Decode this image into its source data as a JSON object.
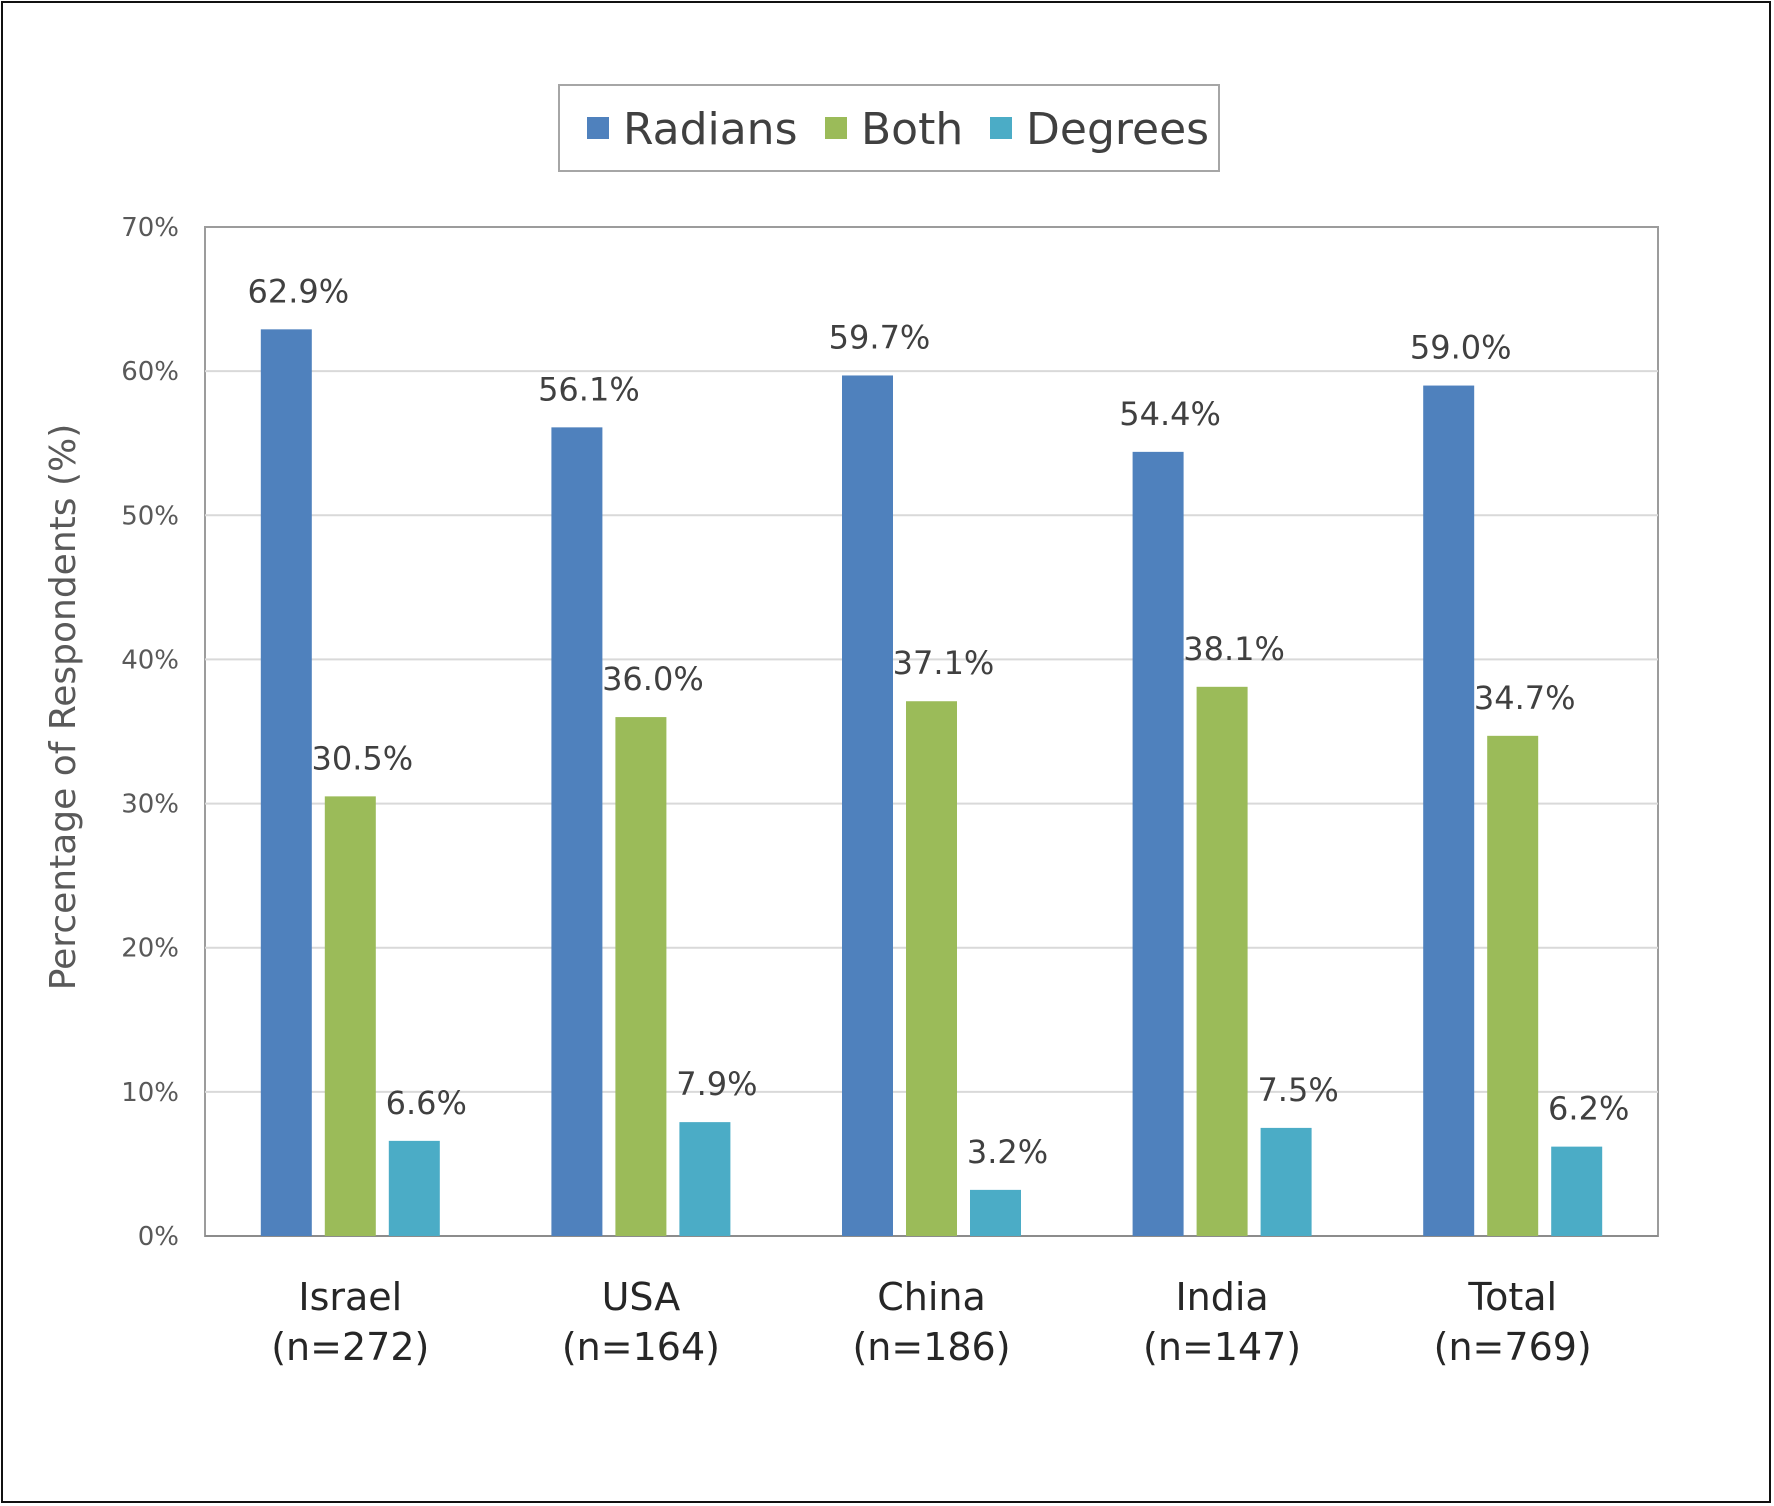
{
  "chart_data": {
    "type": "bar",
    "title": "",
    "ylabel": "Percentage of Respondents (%)",
    "xlabel": "",
    "ylim": [
      0,
      70
    ],
    "ytick_step": 10,
    "ytick_suffix": "%",
    "grid": true,
    "legend_position": "top-center",
    "categories": [
      {
        "name": "Israel",
        "n": "(n=272)"
      },
      {
        "name": "USA",
        "n": "(n=164)"
      },
      {
        "name": "China",
        "n": "(n=186)"
      },
      {
        "name": "India",
        "n": "(n=147)"
      },
      {
        "name": "Total",
        "n": "(n=769)"
      }
    ],
    "series": [
      {
        "name": "Radians",
        "color": "#4f81bd",
        "values": [
          62.9,
          56.1,
          59.7,
          54.4,
          59.0
        ]
      },
      {
        "name": "Both",
        "color": "#9bbb59",
        "values": [
          30.5,
          36.0,
          37.1,
          38.1,
          34.7
        ]
      },
      {
        "name": "Degrees",
        "color": "#4bacc6",
        "values": [
          6.6,
          7.9,
          3.2,
          7.5,
          6.2
        ]
      }
    ]
  }
}
